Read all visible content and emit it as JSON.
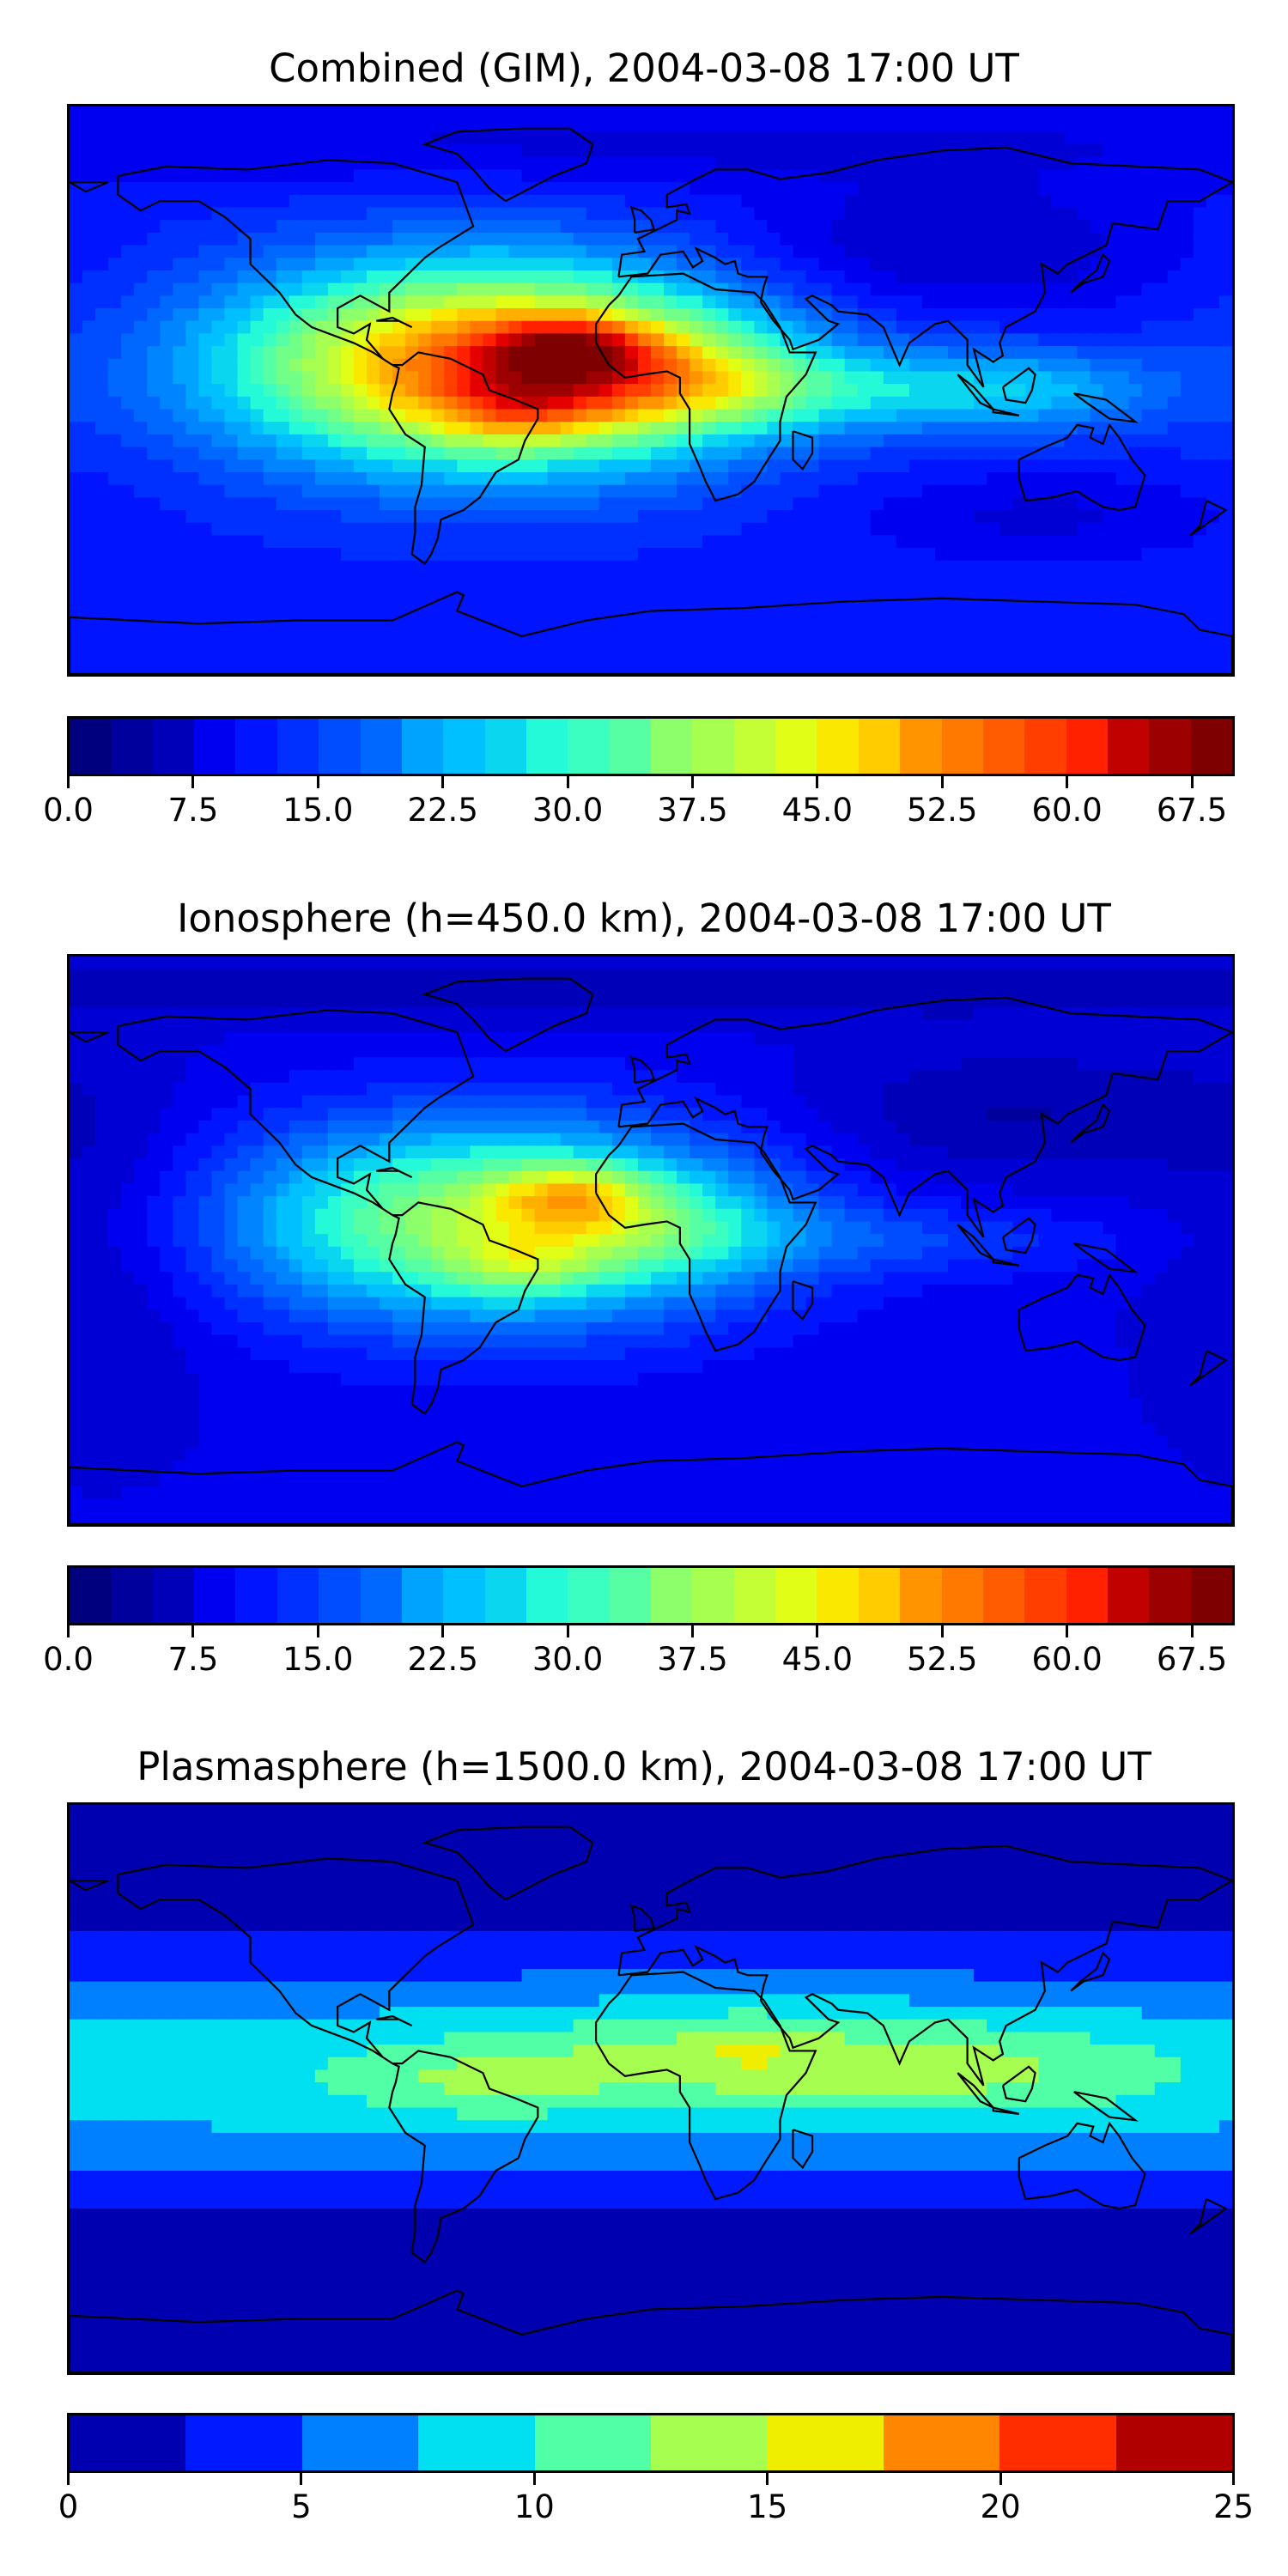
{
  "chart_data": [
    {
      "type": "heatmap",
      "title": "Combined (GIM), 2004-03-08 17:00 UT",
      "colorbar": {
        "min": 0,
        "max": 70,
        "levels": 28,
        "tick_values": [
          0,
          7.5,
          15,
          22.5,
          30,
          37.5,
          45,
          52.5,
          60,
          67.5
        ],
        "tick_labels": [
          "0.0",
          "7.5",
          "15.0",
          "22.5",
          "30.0",
          "37.5",
          "45.0",
          "52.5",
          "60.0",
          "67.5"
        ],
        "colors": [
          "#00007f",
          "#00009c",
          "#0000b8",
          "#0000d5",
          "#0000f1",
          "#0014ff",
          "#0030ff",
          "#004cff",
          "#0068ff",
          "#0084ff",
          "#00a4ff",
          "#00c0ff",
          "#0ad6f0",
          "#24fad7",
          "#3affc0",
          "#57ffa4",
          "#70ff87",
          "#8cff6b",
          "#a7ff50",
          "#c3ff34",
          "#e1ff16",
          "#fae800",
          "#ffcc00",
          "#ffaf00",
          "#ff9400",
          "#ff7800",
          "#ff5b00",
          "#ff3e00",
          "#ff2100",
          "#e50000",
          "#c10000",
          "#9c0000",
          "#7f0000"
        ]
      },
      "field": {
        "background": 12,
        "blobs": [
          {
            "lon": -50,
            "lat": 8,
            "value": 44,
            "lon_width": 55,
            "lat_width": 22
          },
          {
            "lon": -25,
            "lat": 14,
            "value": 16,
            "lon_width": 18,
            "lat_width": 7
          },
          {
            "lon": -40,
            "lat": -6,
            "value": 10,
            "lon_width": 18,
            "lat_width": 8
          },
          {
            "lon": 5,
            "lat": 4,
            "value": 12,
            "lon_width": 30,
            "lat_width": 12
          },
          {
            "lon": 60,
            "lat": 0,
            "value": 10,
            "lon_width": 50,
            "lat_width": 9
          },
          {
            "lon": 120,
            "lat": 0,
            "value": 8,
            "lon_width": 30,
            "lat_width": 10
          },
          {
            "lon": 90,
            "lat": 45,
            "value": -6,
            "lon_width": 50,
            "lat_width": 15
          },
          {
            "lon": 0,
            "lat": 78,
            "value": -4,
            "lon_width": 200,
            "lat_width": 10
          },
          {
            "lon": 120,
            "lat": -40,
            "value": -4,
            "lon_width": 40,
            "lat_width": 10
          }
        ]
      }
    },
    {
      "type": "heatmap",
      "title": "Ionosphere  (h=450.0 km), 2004-03-08 17:00 UT",
      "colorbar": {
        "min": 0,
        "max": 70,
        "levels": 28,
        "tick_values": [
          0,
          7.5,
          15,
          22.5,
          30,
          37.5,
          45,
          52.5,
          60,
          67.5
        ],
        "tick_labels": [
          "0.0",
          "7.5",
          "15.0",
          "22.5",
          "30.0",
          "37.5",
          "45.0",
          "52.5",
          "60.0",
          "67.5"
        ],
        "colors": [
          "#00007f",
          "#00009c",
          "#0000b8",
          "#0000d5",
          "#0000f1",
          "#0014ff",
          "#0030ff",
          "#004cff",
          "#0068ff",
          "#0084ff",
          "#00a4ff",
          "#00c0ff",
          "#0ad6f0",
          "#24fad7",
          "#3affc0",
          "#57ffa4",
          "#70ff87",
          "#8cff6b",
          "#a7ff50",
          "#c3ff34",
          "#e1ff16",
          "#fae800",
          "#ffcc00",
          "#ffaf00",
          "#ff9400",
          "#ff7800",
          "#ff5b00",
          "#ff3e00",
          "#ff2100",
          "#e50000",
          "#c10000",
          "#9c0000",
          "#7f0000"
        ]
      },
      "field": {
        "background": 9,
        "blobs": [
          {
            "lon": -50,
            "lat": 6,
            "value": 30,
            "lon_width": 55,
            "lat_width": 22
          },
          {
            "lon": -25,
            "lat": 14,
            "value": 14,
            "lon_width": 16,
            "lat_width": 7
          },
          {
            "lon": -40,
            "lat": -8,
            "value": 8,
            "lon_width": 16,
            "lat_width": 7
          },
          {
            "lon": 5,
            "lat": 4,
            "value": 8,
            "lon_width": 28,
            "lat_width": 12
          },
          {
            "lon": 80,
            "lat": 0,
            "value": 5,
            "lon_width": 50,
            "lat_width": 8
          },
          {
            "lon": 110,
            "lat": 40,
            "value": -5,
            "lon_width": 45,
            "lat_width": 15
          },
          {
            "lon": 0,
            "lat": 80,
            "value": -4,
            "lon_width": 200,
            "lat_width": 8
          },
          {
            "lon": -170,
            "lat": 0,
            "value": -4,
            "lon_width": 25,
            "lat_width": 40
          }
        ]
      }
    },
    {
      "type": "heatmap",
      "title": "Plasmasphere (h=1500.0 km), 2004-03-08 17:00 UT",
      "colorbar": {
        "min": 0,
        "max": 25,
        "levels": 10,
        "tick_values": [
          0,
          5,
          10,
          15,
          20,
          25
        ],
        "tick_labels": [
          "0",
          "5",
          "10",
          "15",
          "20",
          "25"
        ],
        "colors": [
          "#0000b0",
          "#0019ff",
          "#0080ff",
          "#00e0f0",
          "#50ffa6",
          "#a6ff50",
          "#f0ee00",
          "#ff8600",
          "#ff2d00",
          "#b00000"
        ]
      },
      "field": {
        "background": 0.5,
        "blobs": [
          {
            "lon": 0,
            "lat": 5,
            "value": 8.8,
            "lon_width": 700,
            "lat_width": 26
          },
          {
            "lon": 30,
            "lat": 10,
            "value": 4.5,
            "lon_width": 55,
            "lat_width": 12
          },
          {
            "lon": 30,
            "lat": 14,
            "value": 2,
            "lon_width": 12,
            "lat_width": 6
          },
          {
            "lon": -55,
            "lat": 2,
            "value": 3,
            "lon_width": 28,
            "lat_width": 8
          },
          {
            "lon": 110,
            "lat": 5,
            "value": 2.5,
            "lon_width": 35,
            "lat_width": 10
          }
        ]
      }
    }
  ]
}
